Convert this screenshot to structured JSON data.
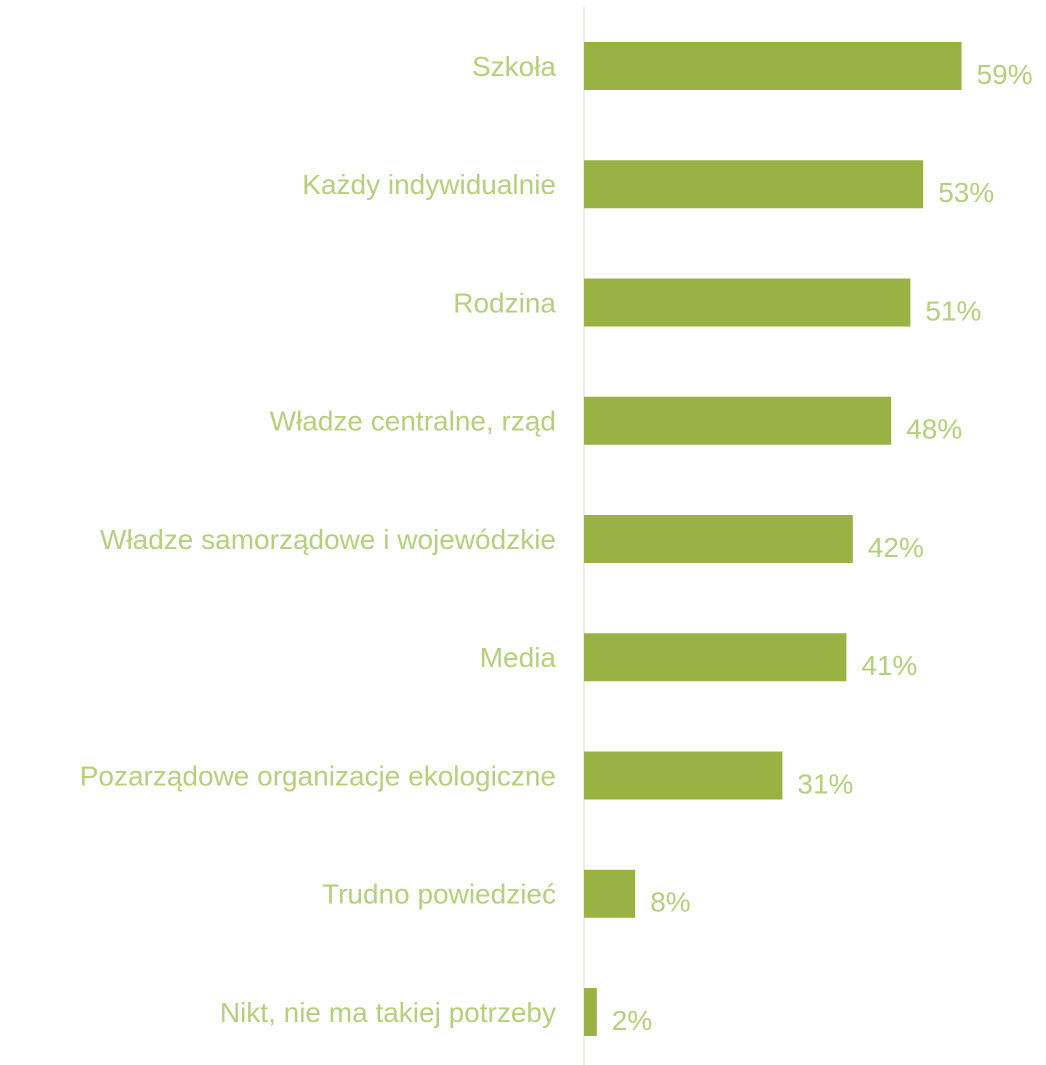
{
  "colors": {
    "bar": "#9ab243",
    "label_text": "#b5cf7f",
    "axis_line": "#e6ecd8",
    "background": "#ffffff"
  },
  "chart_data": {
    "type": "bar",
    "orientation": "horizontal",
    "categories": [
      "Szkoła",
      "Każdy indywidualnie",
      "Rodzina",
      "Władze centralne, rząd",
      "Władze samorządowe i wojewódzkie",
      "Media",
      "Pozarządowe organizacje ekologiczne",
      "Trudno powiedzieć",
      "Nikt, nie ma takiej potrzeby"
    ],
    "values": [
      59,
      53,
      51,
      48,
      42,
      41,
      31,
      8,
      2
    ],
    "value_labels": [
      "59%",
      "53%",
      "51%",
      "48%",
      "42%",
      "41%",
      "31%",
      "8%",
      "2%"
    ],
    "unit": "%",
    "xlim": [
      0,
      70
    ],
    "title": "",
    "xlabel": "",
    "ylabel": "",
    "grid": false,
    "legend": "none"
  }
}
